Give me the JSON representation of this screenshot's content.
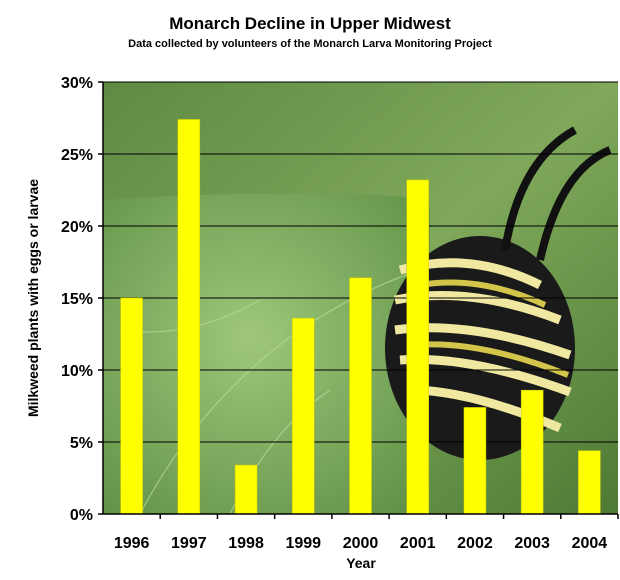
{
  "chart_data": {
    "type": "bar",
    "title": "Monarch Decline in Upper Midwest",
    "subtitle": "Data collected by volunteers of the Monarch Larva Monitoring Project",
    "xlabel": "Year",
    "ylabel": "Milkweed plants with eggs or larvae",
    "categories": [
      "1996",
      "1997",
      "1998",
      "1999",
      "2000",
      "2001",
      "2002",
      "2003",
      "2004"
    ],
    "values": [
      15.0,
      27.4,
      3.4,
      13.6,
      16.4,
      23.2,
      7.4,
      8.6,
      4.4
    ],
    "ylim": [
      0,
      30
    ],
    "yticks": [
      "0%",
      "5%",
      "10%",
      "15%",
      "20%",
      "25%",
      "30%"
    ],
    "grid": true,
    "bar_color": "#ffff00",
    "background": "monarch-caterpillar-photo"
  }
}
